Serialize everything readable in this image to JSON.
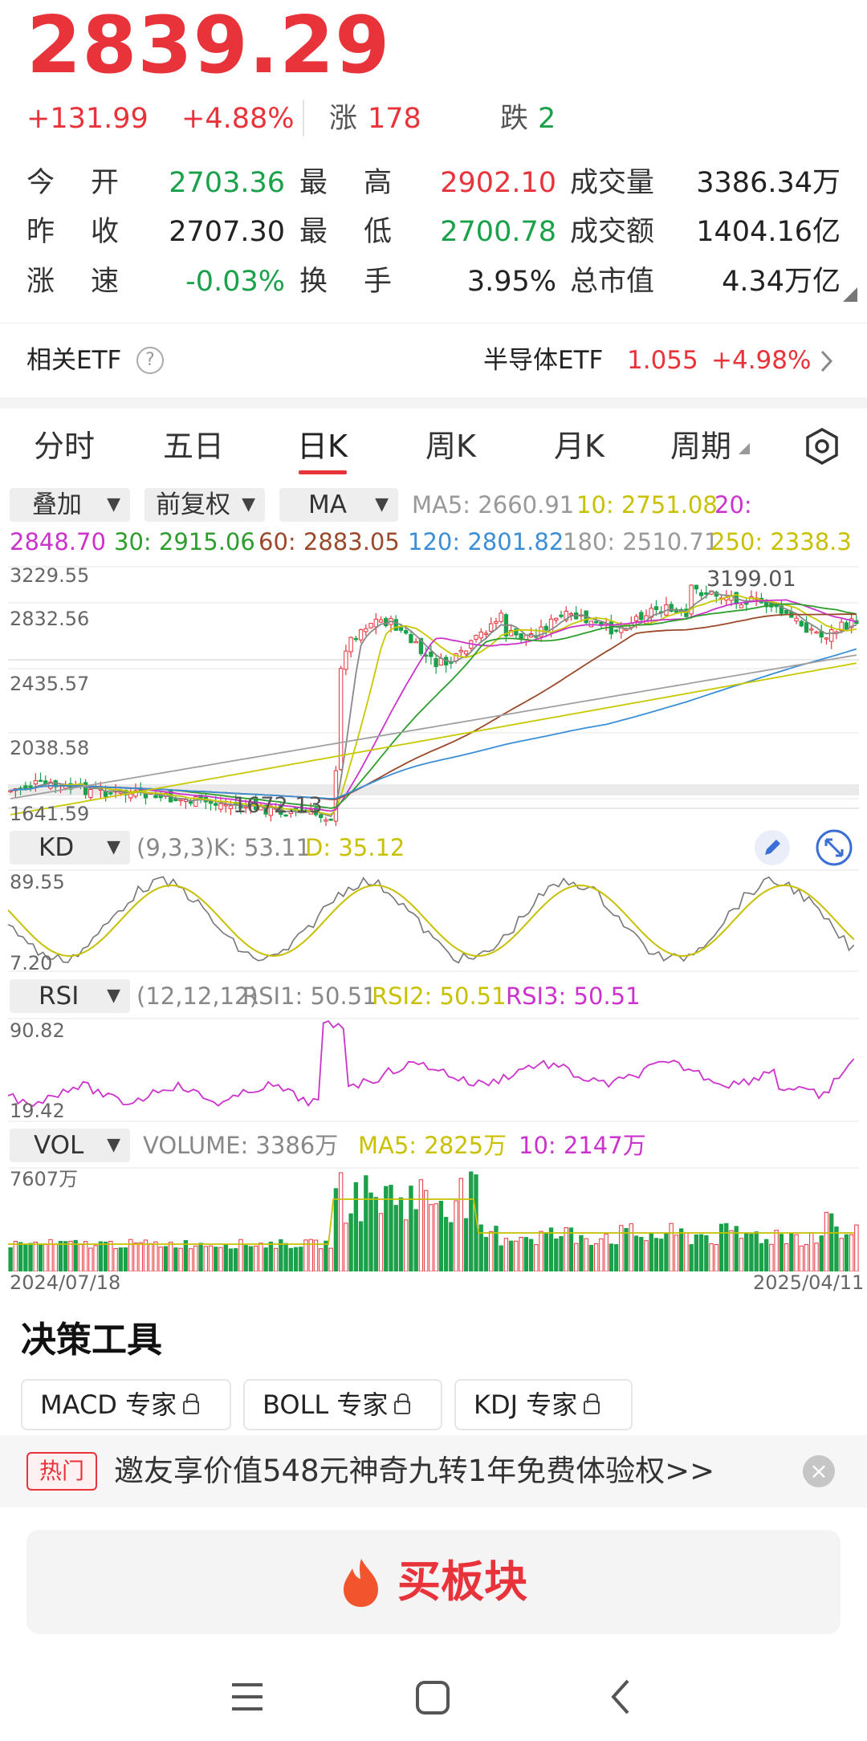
{
  "quote": {
    "price": "2839.29",
    "change": "+131.99",
    "pct": "+4.88%",
    "up_label": "涨",
    "up_count": "178",
    "down_label": "跌",
    "down_count": "2"
  },
  "stats": {
    "r1": {
      "l1": "今",
      "l2": "开",
      "v1": "2703.36",
      "l3": "最",
      "l4": "高",
      "v2": "2902.10",
      "l5": "成交量",
      "v3": "3386.34万"
    },
    "r2": {
      "l1": "昨",
      "l2": "收",
      "v1": "2707.30",
      "l3": "最",
      "l4": "低",
      "v2": "2700.78",
      "l5": "成交额",
      "v3": "1404.16亿"
    },
    "r3": {
      "l1": "涨",
      "l2": "速",
      "v1": "-0.03%",
      "l3": "换",
      "l4": "手",
      "v2": "3.95%",
      "l5": "总市值",
      "v3": "4.34万亿"
    }
  },
  "etf": {
    "label": "相关ETF",
    "name": "半导体ETF",
    "price": "1.055",
    "pct": "+4.98%"
  },
  "tabs": [
    "分时",
    "五日",
    "日K",
    "周K",
    "月K",
    "周期"
  ],
  "indicator_bar": {
    "overlay": "叠加",
    "adjust": "前复权",
    "ma": "MA",
    "ma5": "MA5: 2660.91",
    "ma10": "10: 2751.08",
    "ma20a": "20:",
    "ma20b": "2848.70",
    "ma30": "30: 2915.06",
    "ma60": "60: 2883.05",
    "ma120": "120: 2801.82",
    "ma180": "180: 2510.71",
    "ma250": "250: 2338.3"
  },
  "kline_axis": {
    "y1": "3229.55",
    "y2": "2832.56",
    "y3": "2435.57",
    "y4": "2038.58",
    "y5": "1641.59",
    "high_mark": "3199.01",
    "low_mark": "1672.13"
  },
  "kd": {
    "name": "KD",
    "params": "(9,3,3)",
    "k": "K: 53.11",
    "d": "D: 35.12",
    "ymax": "89.55",
    "ymin": "7.20"
  },
  "rsi": {
    "name": "RSI",
    "params": "(12,12,12)",
    "r1": "RSI1: 50.51",
    "r2": "RSI2: 50.51",
    "r3": "RSI3: 50.51",
    "ymax": "90.82",
    "ymin": "19.42"
  },
  "vol": {
    "name": "VOL",
    "volume": "VOLUME: 3386万",
    "ma5": "MA5: 2825万",
    "ma10": "10: 2147万",
    "ymax": "7607万",
    "date_start": "2024/07/18",
    "date_end": "2025/04/11"
  },
  "tools": {
    "title": "决策工具",
    "b1": "MACD 专家",
    "b2": "BOLL 专家",
    "b3": "KDJ 专家"
  },
  "promo": {
    "tag": "热门",
    "text": "邀友享价值548元神奇九转1年免费体验权>>"
  },
  "buy": {
    "label": "买板块"
  },
  "colors": {
    "up": "#e8333b",
    "down": "#1aa14a",
    "ma5": "#888888",
    "ma10": "#c8c800",
    "ma20": "#cc33cc",
    "ma30": "#2e9e2e",
    "ma60": "#9a4a2a",
    "ma120": "#3b8fd6",
    "ma180": "#a0a0a0",
    "ma250": "#c8c800"
  }
}
